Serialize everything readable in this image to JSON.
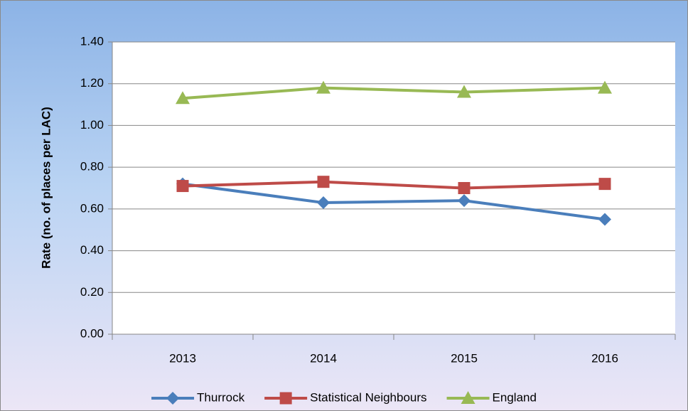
{
  "chart_data": {
    "type": "line",
    "y_label": "Rate (no. of places per LAC)",
    "categories": [
      "2013",
      "2014",
      "2015",
      "2016"
    ],
    "series": [
      {
        "name": "Thurrock",
        "color": "#4a7ebb",
        "marker": "diamond",
        "values": [
          0.72,
          0.63,
          0.64,
          0.55
        ]
      },
      {
        "name": "Statistical Neighbours",
        "color": "#be4b48",
        "marker": "square",
        "values": [
          0.71,
          0.73,
          0.7,
          0.72
        ]
      },
      {
        "name": "England",
        "color": "#98b954",
        "marker": "triangle",
        "values": [
          1.13,
          1.18,
          1.16,
          1.18
        ]
      }
    ],
    "ylim": [
      0,
      1.4
    ],
    "yticks": [
      {
        "value": 0,
        "label": "0.00"
      },
      {
        "value": 0.2,
        "label": "0.20"
      },
      {
        "value": 0.4,
        "label": "0.40"
      },
      {
        "value": 0.6,
        "label": "0.60"
      },
      {
        "value": 0.8,
        "label": "0.80"
      },
      {
        "value": 1.0,
        "label": "1.00"
      },
      {
        "value": 1.2,
        "label": "1.20"
      },
      {
        "value": 1.4,
        "label": "1.40"
      }
    ],
    "grid": true,
    "legend": "bottom"
  }
}
